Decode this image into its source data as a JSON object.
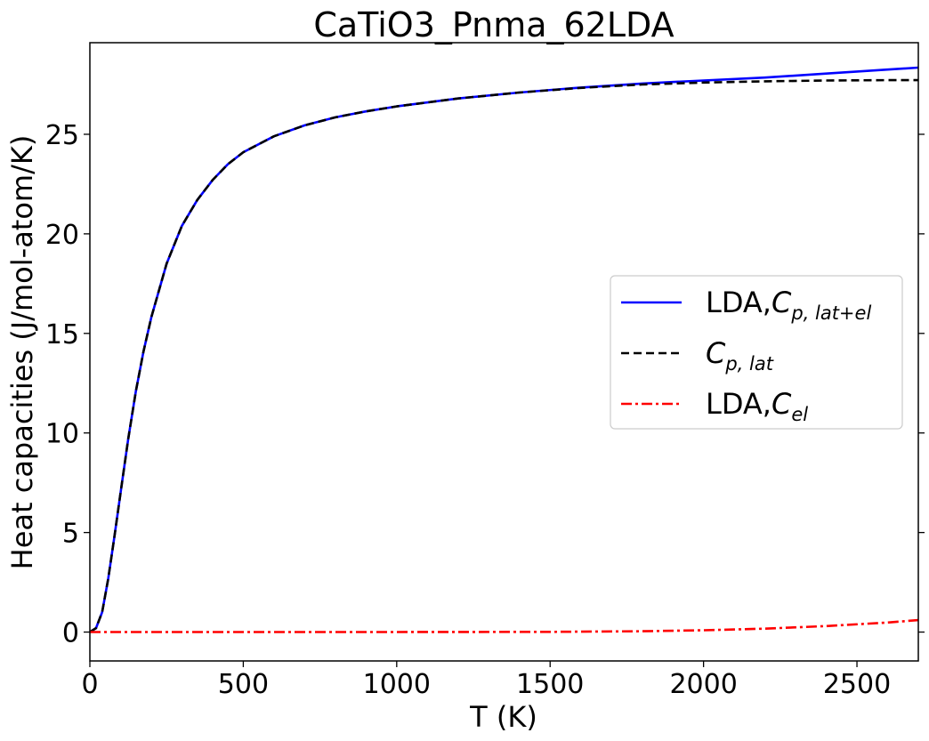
{
  "chart_data": {
    "type": "line",
    "title": "CaTiO3_Pnma_62LDA",
    "xlabel": "T (K)",
    "ylabel": "Heat capacities (J/mol-atom/K)",
    "xlim": [
      0,
      2700
    ],
    "ylim": [
      -1.45,
      29.6
    ],
    "x_ticks": [
      0,
      500,
      1000,
      1500,
      2000,
      2500
    ],
    "y_ticks": [
      0,
      5,
      10,
      15,
      20,
      25
    ],
    "grid": false,
    "legend_position": "center-right",
    "series": [
      {
        "name": "LDA,C_{p,lat+el}",
        "legend_prefix": "LDA,",
        "legend_symbol": "C",
        "legend_subscript": "p, lat+el",
        "color": "#0000ff",
        "style": "solid",
        "x": [
          0,
          20,
          40,
          60,
          80,
          100,
          125,
          150,
          175,
          200,
          250,
          300,
          350,
          400,
          450,
          500,
          600,
          700,
          800,
          900,
          1000,
          1200,
          1400,
          1600,
          1800,
          2000,
          2200,
          2400,
          2600,
          2700
        ],
        "y": [
          0,
          0.2,
          1.0,
          2.7,
          4.8,
          7.0,
          9.7,
          12.1,
          14.1,
          15.8,
          18.5,
          20.4,
          21.7,
          22.7,
          23.5,
          24.1,
          24.9,
          25.45,
          25.85,
          26.15,
          26.4,
          26.8,
          27.1,
          27.35,
          27.55,
          27.7,
          27.85,
          28.05,
          28.25,
          28.35
        ]
      },
      {
        "name": "C_{p,lat}",
        "legend_prefix": "",
        "legend_symbol": "C",
        "legend_subscript": "p, lat",
        "color": "#000000",
        "style": "dashed",
        "x": [
          0,
          20,
          40,
          60,
          80,
          100,
          125,
          150,
          175,
          200,
          250,
          300,
          350,
          400,
          450,
          500,
          600,
          700,
          800,
          900,
          1000,
          1200,
          1400,
          1600,
          1800,
          2000,
          2200,
          2400,
          2600,
          2700
        ],
        "y": [
          0,
          0.2,
          1.0,
          2.7,
          4.8,
          7.0,
          9.7,
          12.1,
          14.1,
          15.8,
          18.5,
          20.4,
          21.7,
          22.7,
          23.5,
          24.1,
          24.9,
          25.45,
          25.85,
          26.15,
          26.4,
          26.8,
          27.1,
          27.33,
          27.5,
          27.6,
          27.66,
          27.7,
          27.72,
          27.72
        ]
      },
      {
        "name": "LDA,C_{el}",
        "legend_prefix": "LDA,",
        "legend_symbol": "C",
        "legend_subscript": "el",
        "color": "#ff0000",
        "style": "dashdot",
        "x": [
          0,
          500,
          1000,
          1500,
          1800,
          2000,
          2200,
          2400,
          2600,
          2700
        ],
        "y": [
          0,
          0,
          0,
          0.01,
          0.04,
          0.09,
          0.17,
          0.3,
          0.48,
          0.6
        ]
      }
    ]
  }
}
